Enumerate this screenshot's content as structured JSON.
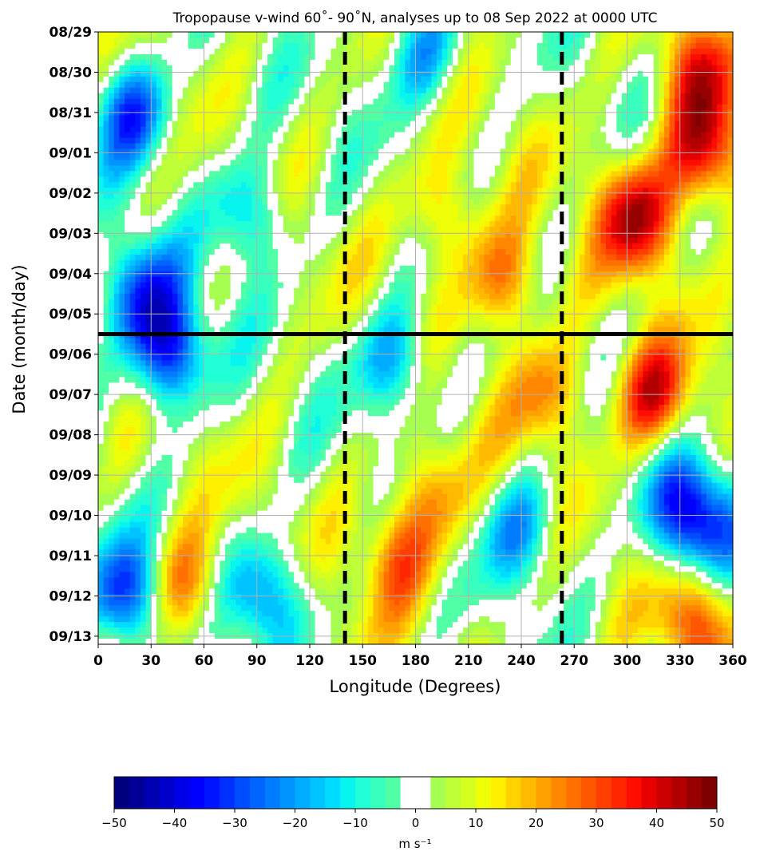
{
  "chart_data": {
    "type": "heatmap",
    "title": "Tropopause v-wind 60˚- 90˚N, analyses up to 08 Sep 2022 at 0000 UTC",
    "xlabel": "Longitude (Degrees)",
    "ylabel": "Date (month/day)",
    "xlim": [
      0,
      360
    ],
    "x_ticks": [
      0,
      30,
      60,
      90,
      120,
      150,
      180,
      210,
      240,
      270,
      300,
      330,
      360
    ],
    "y_tick_labels": [
      "08/29",
      "08/30",
      "08/31",
      "09/01",
      "09/02",
      "09/03",
      "09/04",
      "09/05",
      "09/06",
      "09/07",
      "09/08",
      "09/09",
      "09/10",
      "09/11",
      "09/12",
      "09/13"
    ],
    "ylim_days": [
      0,
      15.2
    ],
    "grid": true,
    "analysis_cutoff_line": {
      "label": "09/05",
      "day_offset": 7.5
    },
    "dashed_longitudes": [
      140,
      263
    ],
    "colorbar": {
      "label": "m s⁻¹",
      "ticks": [
        -50,
        -40,
        -30,
        -20,
        -10,
        0,
        10,
        20,
        30,
        40,
        50
      ],
      "vmin": -50,
      "vmax": 50,
      "levels": [
        -50,
        -47.5,
        -45,
        -42.5,
        -40,
        -37.5,
        -35,
        -32.5,
        -30,
        -27.5,
        -25,
        -22.5,
        -20,
        -17.5,
        -15,
        -12.5,
        -10,
        -7.5,
        -5,
        -2.5,
        2.5,
        5,
        7.5,
        10,
        12.5,
        15,
        17.5,
        20,
        22.5,
        25,
        27.5,
        30,
        32.5,
        35,
        37.5,
        40,
        42.5,
        45,
        47.5,
        50
      ],
      "colors": [
        "#00007f",
        "#000096",
        "#0000b2",
        "#0000cd",
        "#0000e8",
        "#0000ff",
        "#0014ff",
        "#0030ff",
        "#004cff",
        "#0064ff",
        "#007cff",
        "#0094ff",
        "#00acff",
        "#00c4ff",
        "#00dcff",
        "#08f4ee",
        "#20ffd6",
        "#38ffbe",
        "#50ffa6",
        "#ffffff",
        "#a6ff50",
        "#beff38",
        "#d6ff20",
        "#eeff08",
        "#fff000",
        "#ffd200",
        "#ffb900",
        "#ffa100",
        "#ff8800",
        "#ff7000",
        "#ff5700",
        "#ff3f00",
        "#ff2600",
        "#ff0e00",
        "#e80000",
        "#cd0000",
        "#b20000",
        "#960000",
        "#7f0000"
      ]
    },
    "features": [
      {
        "lon": 20,
        "day": 2.0,
        "value": -33
      },
      {
        "lon": 40,
        "day": 8.0,
        "value": -38
      },
      {
        "lon": 25,
        "day": 6.5,
        "value": -30
      },
      {
        "lon": 15,
        "day": 14.0,
        "value": -35
      },
      {
        "lon": 95,
        "day": 14.0,
        "value": -28
      },
      {
        "lon": 85,
        "day": 4.5,
        "value": -22
      },
      {
        "lon": 185,
        "day": 0.5,
        "value": -22
      },
      {
        "lon": 168,
        "day": 8.2,
        "value": -24
      },
      {
        "lon": 240,
        "day": 12.4,
        "value": -22
      },
      {
        "lon": 345,
        "day": 12.3,
        "value": -28
      },
      {
        "lon": 330,
        "day": 11.8,
        "value": -24
      },
      {
        "lon": 305,
        "day": 4.6,
        "value": 36
      },
      {
        "lon": 345,
        "day": 3.0,
        "value": 38
      },
      {
        "lon": 315,
        "day": 9.0,
        "value": 34
      },
      {
        "lon": 340,
        "day": 1.0,
        "value": 28
      },
      {
        "lon": 230,
        "day": 6.2,
        "value": 24
      },
      {
        "lon": 170,
        "day": 13.0,
        "value": 22
      },
      {
        "lon": 50,
        "day": 13.8,
        "value": 24
      },
      {
        "lon": 340,
        "day": 14.6,
        "value": 26
      },
      {
        "lon": 190,
        "day": 11.5,
        "value": 18
      },
      {
        "lon": 195,
        "day": 4.5,
        "value": 16
      },
      {
        "lon": 255,
        "day": 9.0,
        "value": 20
      }
    ]
  }
}
